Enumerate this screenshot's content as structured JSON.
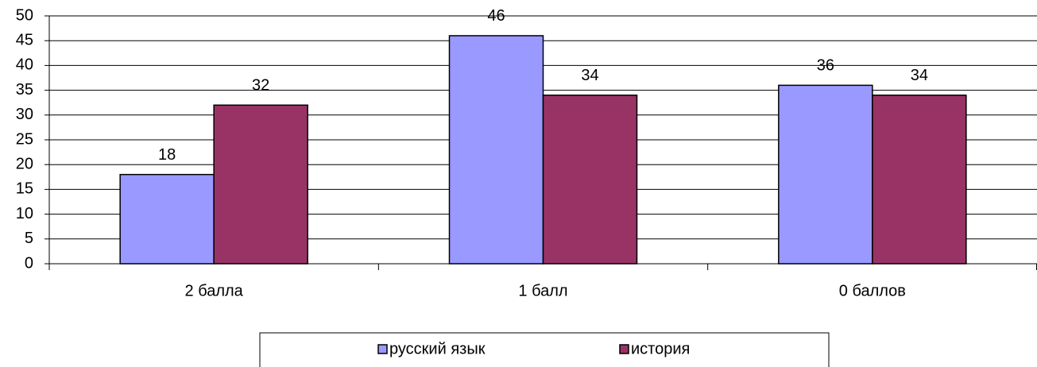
{
  "chart_data": {
    "type": "bar",
    "categories": [
      "2 балла",
      "1 балл",
      "0 баллов"
    ],
    "series": [
      {
        "name": "русский язык",
        "color": "#9999ff",
        "values": [
          18,
          46,
          36
        ]
      },
      {
        "name": "история",
        "color": "#993366",
        "values": [
          32,
          34,
          34
        ]
      }
    ],
    "ylim": [
      0,
      50
    ],
    "yticks": [
      0,
      5,
      10,
      15,
      20,
      25,
      30,
      35,
      40,
      45,
      50
    ],
    "grid": true,
    "legend": "bottom"
  }
}
